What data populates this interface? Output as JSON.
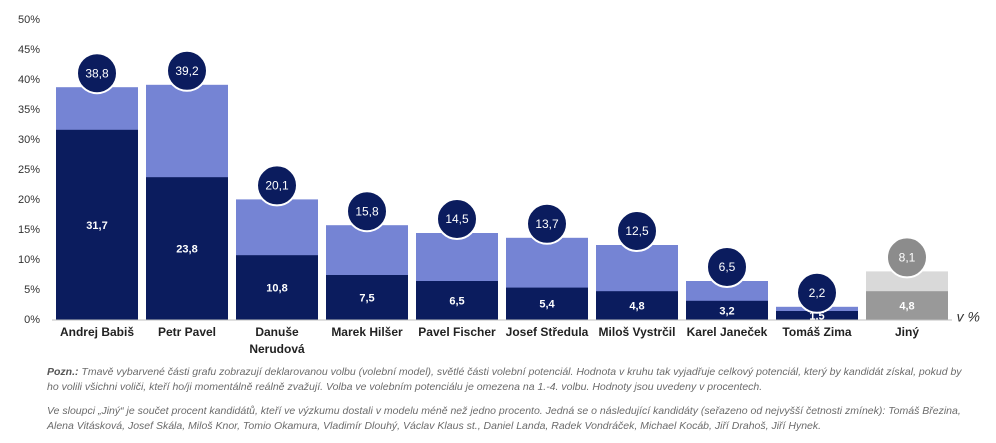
{
  "chart_data": {
    "type": "bar",
    "categories": [
      "Andrej Babiš",
      "Petr Pavel",
      "Danuše Nerudová",
      "Marek Hilšer",
      "Pavel Fischer",
      "Josef Středula",
      "Miloš Vystrčil",
      "Karel Janeček",
      "Tomáš Zima",
      "Jiný"
    ],
    "series": [
      {
        "name": "volební potenciál",
        "colors": [
          "#7584d4",
          "#7584d4",
          "#7584d4",
          "#7584d4",
          "#7584d4",
          "#7584d4",
          "#7584d4",
          "#7584d4",
          "#7584d4",
          "#d9d9d9"
        ],
        "circle_colors": [
          "#0b1c5e",
          "#0b1c5e",
          "#0b1c5e",
          "#0b1c5e",
          "#0b1c5e",
          "#0b1c5e",
          "#0b1c5e",
          "#0b1c5e",
          "#0b1c5e",
          "#8c8c8c"
        ],
        "values": [
          38.8,
          39.2,
          20.1,
          15.8,
          14.5,
          13.7,
          12.5,
          6.5,
          2.2,
          8.1
        ],
        "value_labels": [
          "38,8",
          "39,2",
          "20,1",
          "15,8",
          "14,5",
          "13,7",
          "12,5",
          "6,5",
          "2,2",
          "8,1"
        ]
      },
      {
        "name": "volební model",
        "colors": [
          "#0b1c5e",
          "#0b1c5e",
          "#0b1c5e",
          "#0b1c5e",
          "#0b1c5e",
          "#0b1c5e",
          "#0b1c5e",
          "#0b1c5e",
          "#0b1c5e",
          "#999999"
        ],
        "values": [
          31.7,
          23.8,
          10.8,
          7.5,
          6.5,
          5.4,
          4.8,
          3.2,
          1.5,
          4.8
        ],
        "value_labels": [
          "31,7",
          "23,8",
          "10,8",
          "7,5",
          "6,5",
          "5,4",
          "4,8",
          "3,2",
          "1,5",
          "4,8"
        ]
      }
    ],
    "ylim": [
      0,
      50
    ],
    "yticks": [
      {
        "value": 0,
        "label": "0%"
      },
      {
        "value": 5,
        "label": "5%"
      },
      {
        "value": 10,
        "label": "10%"
      },
      {
        "value": 15,
        "label": "15%"
      },
      {
        "value": 20,
        "label": "20%"
      },
      {
        "value": 25,
        "label": "25%"
      },
      {
        "value": 30,
        "label": "30%"
      },
      {
        "value": 35,
        "label": "35%"
      },
      {
        "value": 40,
        "label": "40%"
      },
      {
        "value": 45,
        "label": "45%"
      },
      {
        "value": 50,
        "label": "50%"
      }
    ],
    "unit_label": "v %",
    "note1": {
      "label": "Pozn.:",
      "text": "Tmavě vybarvené části grafu zobrazují deklarovanou volbu (volební model), světlé části volební potenciál. Hodnota v kruhu tak vyjadřuje celkový potenciál, který by kandidát získal, pokud by ho volili všichni voliči, kteří ho/ji momentálně reálně zvažují. Volba ve volebním potenciálu je omezena na 1.-4. volbu. Hodnoty jsou uvedeny v procentech."
    },
    "note2": "Ve sloupci „Jiný“ je součet procent kandidátů, kteří ve výzkumu dostali v modelu méně než jedno procento. Jedná se o následující kandidáty (seřazeno od nejvyšší četnosti zmínek): Tomáš Březina, Alena Vitásková, Josef Skála, Miloš Knor, Tomio Okamura, Vladimír Dlouhý, Václav Klaus st., Daniel Landa, Radek Vondráček, Michael Kocáb, Jiří Drahoš, Jiří Hynek."
  }
}
